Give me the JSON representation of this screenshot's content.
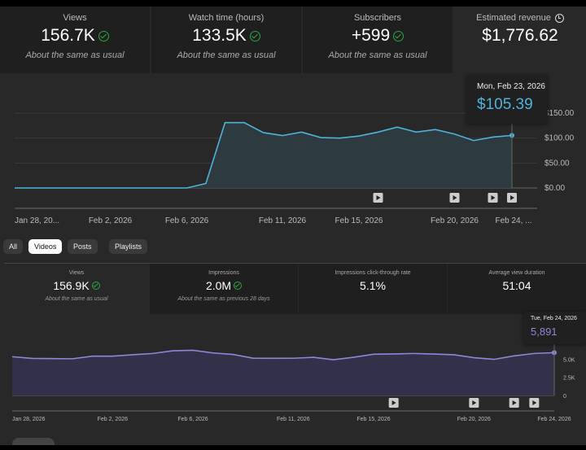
{
  "top_cards": [
    {
      "label": "Views",
      "value": "156.7K",
      "status": "About the same as usual",
      "check": true
    },
    {
      "label": "Watch time (hours)",
      "value": "133.5K",
      "status": "About the same as usual",
      "check": true
    },
    {
      "label": "Subscribers",
      "value": "+599",
      "status": "About the same as usual",
      "check": true
    },
    {
      "label": "Estimated revenue",
      "value": "$1,776.62",
      "icon": "clock-icon",
      "selected": true
    }
  ],
  "revenue_tooltip": {
    "date": "Mon, Feb 23, 2026",
    "value": "$105.39"
  },
  "tabs": [
    {
      "label": "All"
    },
    {
      "label": "Videos",
      "selected": true
    },
    {
      "label": "Posts"
    },
    {
      "label": "Playlists"
    }
  ],
  "bottom_cards": [
    {
      "label": "Views",
      "value": "156.9K",
      "status": "About the same as usual",
      "check": true,
      "selected": true
    },
    {
      "label": "Impressions",
      "value": "2.0M",
      "status": "About the same as previous 28 days",
      "check": true
    },
    {
      "label": "Impressions click-through rate",
      "value": "5.1%"
    },
    {
      "label": "Average view duration",
      "value": "51:04"
    }
  ],
  "views_tooltip": {
    "date": "Tue, Feb 24, 2026",
    "value": "5,891"
  },
  "chart_data": [
    {
      "type": "area",
      "series_color": "#4fb3d9",
      "x": [
        "Jan 28",
        "Jan 29",
        "Jan 30",
        "Jan 31",
        "Feb 1",
        "Feb 2",
        "Feb 3",
        "Feb 4",
        "Feb 5",
        "Feb 6",
        "Feb 7",
        "Feb 8",
        "Feb 9",
        "Feb 10",
        "Feb 11",
        "Feb 12",
        "Feb 13",
        "Feb 14",
        "Feb 15",
        "Feb 16",
        "Feb 17",
        "Feb 18",
        "Feb 19",
        "Feb 20",
        "Feb 21",
        "Feb 22",
        "Feb 23"
      ],
      "values": [
        0,
        0,
        0,
        0,
        0,
        0,
        0,
        0,
        0,
        0,
        9,
        131,
        131,
        111,
        105,
        112,
        101,
        100,
        104,
        112,
        122,
        112,
        117,
        108,
        95,
        102,
        105.39
      ],
      "ylim": [
        0,
        150
      ],
      "yticks": [
        "$0.00",
        "$50.00",
        "$100.00",
        "$150.00"
      ],
      "xtick_labels": [
        "Jan 28, 20...",
        "Feb 2, 2026",
        "Feb 6, 2026",
        "Feb 11, 2026",
        "Feb 15, 2026",
        "Feb 20, 2026",
        "Feb 24, ..."
      ],
      "video_markers": [
        "Feb 16",
        "Feb 20",
        "Feb 22",
        "Feb 23"
      ]
    },
    {
      "type": "area",
      "series_color": "#8e86d6",
      "x": [
        "Jan 28",
        "Jan 29",
        "Jan 30",
        "Jan 31",
        "Feb 1",
        "Feb 2",
        "Feb 3",
        "Feb 4",
        "Feb 5",
        "Feb 6",
        "Feb 7",
        "Feb 8",
        "Feb 9",
        "Feb 10",
        "Feb 11",
        "Feb 12",
        "Feb 13",
        "Feb 14",
        "Feb 15",
        "Feb 16",
        "Feb 17",
        "Feb 18",
        "Feb 19",
        "Feb 20",
        "Feb 21",
        "Feb 22",
        "Feb 23",
        "Feb 24"
      ],
      "values": [
        5330,
        5100,
        5070,
        5050,
        5410,
        5410,
        5600,
        5780,
        6150,
        6220,
        5850,
        5650,
        5130,
        5110,
        5120,
        5250,
        4920,
        5250,
        5670,
        5720,
        5780,
        5700,
        5600,
        5200,
        4970,
        5450,
        5780,
        5891
      ],
      "ylim": [
        0,
        7500
      ],
      "yticks": [
        "0",
        "2.5K",
        "5.0K"
      ],
      "xtick_labels": [
        "Jan 28, 2026",
        "Feb 2, 2026",
        "Feb 6, 2026",
        "Feb 11, 2026",
        "Feb 15, 2026",
        "Feb 20, 2026",
        "Feb 24, 2026"
      ],
      "video_markers": [
        "Feb 16",
        "Feb 20",
        "Feb 22",
        "Feb 23"
      ]
    }
  ]
}
